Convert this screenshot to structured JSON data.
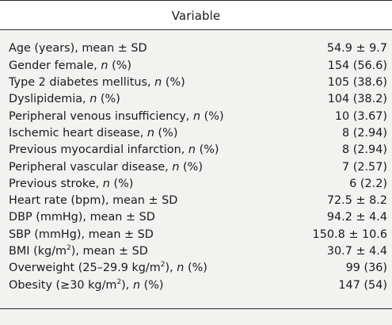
{
  "header": {
    "title": "Variable"
  },
  "rows": [
    {
      "pre": "Age (years), mean ± SD",
      "it": "",
      "post": "",
      "value": "54.9 ± 9.7"
    },
    {
      "pre": "Gender female, ",
      "it": "n",
      "post": " (%)",
      "value": "154 (56.6)"
    },
    {
      "pre": "Type 2 diabetes mellitus, ",
      "it": "n",
      "post": " (%)",
      "value": "105 (38.6)"
    },
    {
      "pre": "Dyslipidemia, ",
      "it": "n",
      "post": " (%)",
      "value": "104 (38.2)"
    },
    {
      "pre": "Peripheral venous insufficiency, ",
      "it": "n",
      "post": " (%)",
      "value": "10 (3.67)"
    },
    {
      "pre": "Ischemic heart disease, ",
      "it": "n",
      "post": " (%)",
      "value": "8 (2.94)"
    },
    {
      "pre": "Previous myocardial infarction, ",
      "it": "n",
      "post": " (%)",
      "value": "8 (2.94)"
    },
    {
      "pre": "Peripheral vascular disease, ",
      "it": "n",
      "post": " (%)",
      "value": "7 (2.57)"
    },
    {
      "pre": "Previous stroke, ",
      "it": "n",
      "post": " (%)",
      "value": "6 (2.2)"
    },
    {
      "pre": "Heart rate (bpm), mean ± SD",
      "it": "",
      "post": "",
      "value": "72.5 ± 8.2"
    },
    {
      "pre": "DBP (mmHg), mean ± SD",
      "it": "",
      "post": "",
      "value": "94.2 ± 4.4"
    },
    {
      "pre": "SBP (mmHg), mean ± SD",
      "it": "",
      "post": "",
      "value": "150.8 ± 10.6"
    },
    {
      "pre": "BMI (kg/m",
      "sup": "2",
      "mid": "), mean ± SD",
      "it": "",
      "post": "",
      "value": "30.7 ± 4.4"
    },
    {
      "pre": "Overweight (25–29.9 kg/m",
      "sup": "2",
      "mid": "), ",
      "it": "n",
      "post": " (%)",
      "value": "99 (36)"
    },
    {
      "pre": "Obesity (≥30 kg/m",
      "sup": "2",
      "mid": "), ",
      "it": "n",
      "post": " (%)",
      "value": "147 (54)"
    }
  ]
}
